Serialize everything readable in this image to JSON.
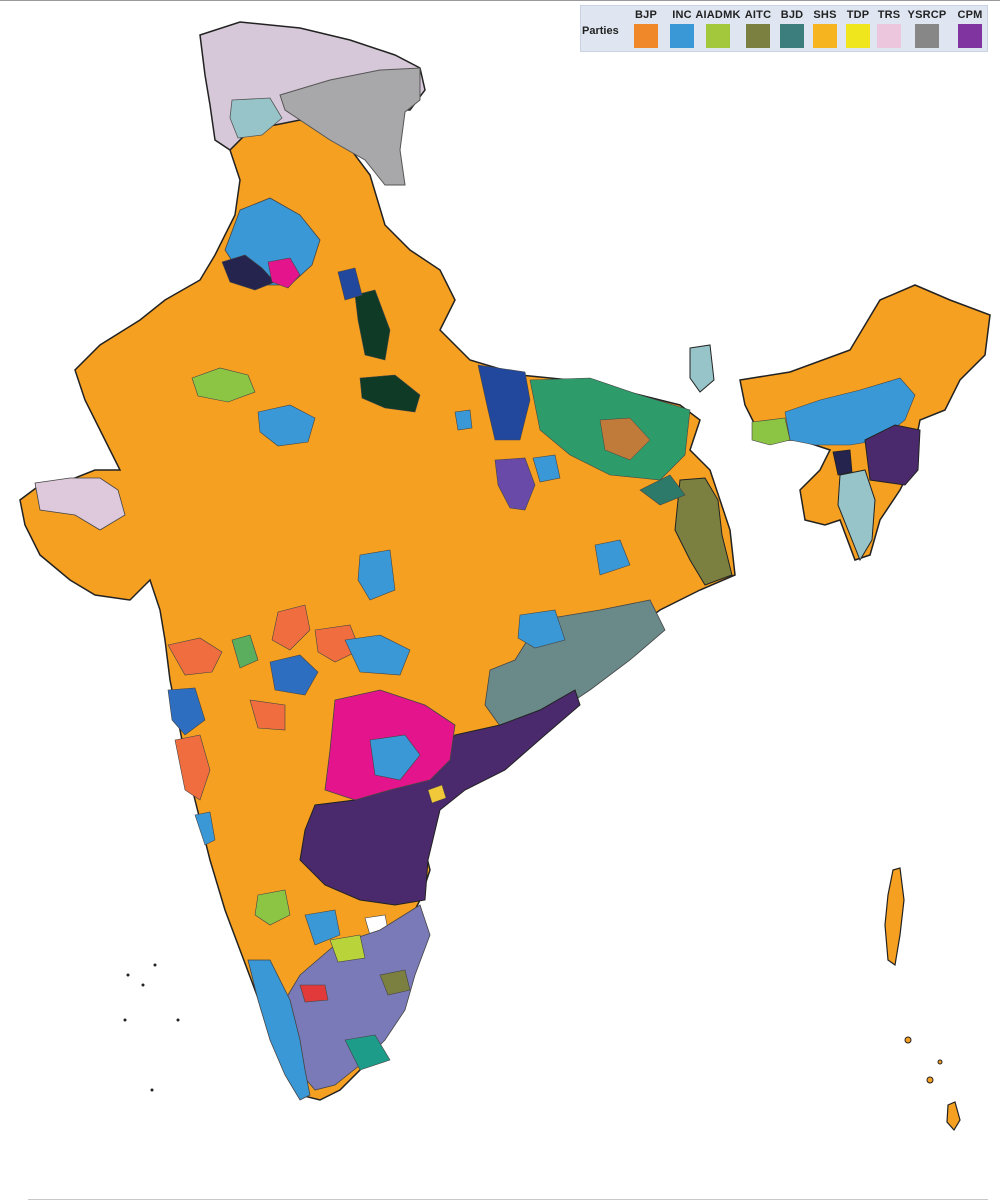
{
  "legend": {
    "title": "Parties",
    "items": [
      {
        "label": "BJP",
        "color": "#f0882a"
      },
      {
        "label": "INC",
        "color": "#3a98d6"
      },
      {
        "label": "AIADMK",
        "color": "#a4c83c"
      },
      {
        "label": "AITC",
        "color": "#7b8040"
      },
      {
        "label": "BJD",
        "color": "#3c7d7d"
      },
      {
        "label": "SHS",
        "color": "#f6b41e"
      },
      {
        "label": "TDP",
        "color": "#f0e61e"
      },
      {
        "label": "TRS",
        "color": "#ecc6dc"
      },
      {
        "label": "YSRCP",
        "color": "#878787"
      },
      {
        "label": "CPM",
        "color": "#8034a0"
      }
    ]
  },
  "colors": {
    "bjp_fill": "#f6a021",
    "inc_fill": "#3a98d6",
    "ysrcp_fill": "#4a2a6c",
    "bjd_fill": "#6a8a8a",
    "aitc_fill": "#7b8040",
    "trs_fill": "#e4148c",
    "aiadmk_fill": "#7a7ab8",
    "jk_fill": "#d6c8d8",
    "ladakh_fill": "#a8a8aa",
    "border": "#222222"
  }
}
